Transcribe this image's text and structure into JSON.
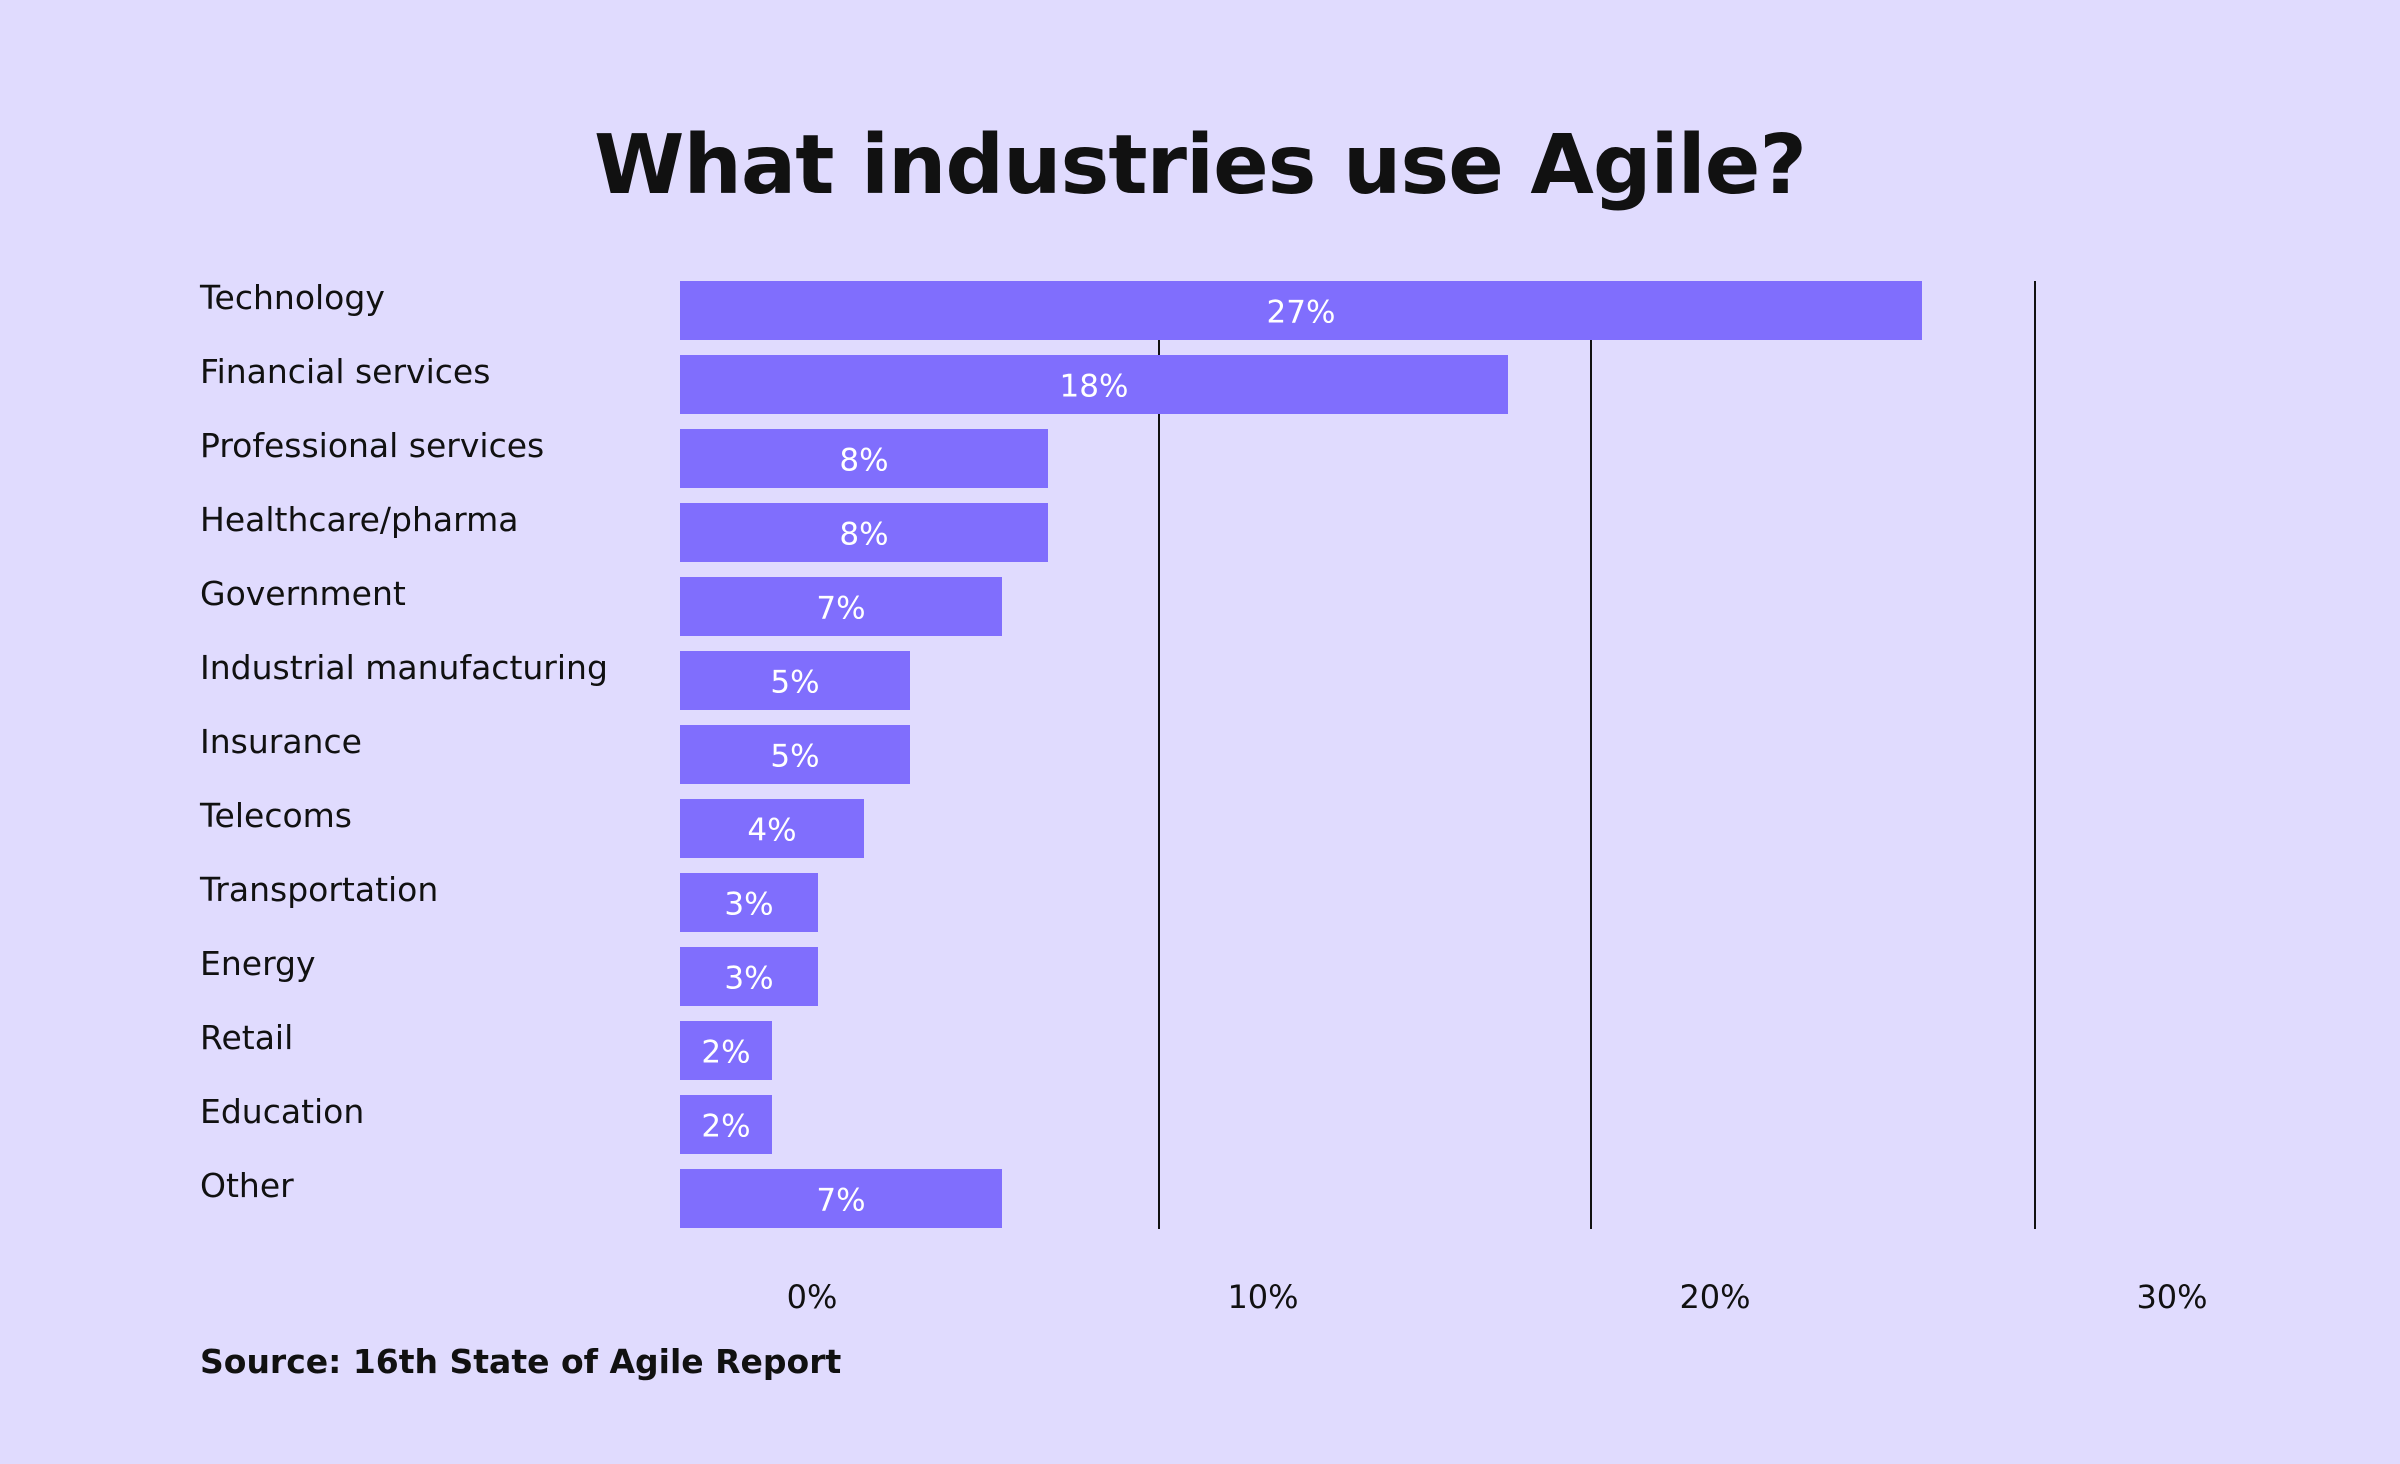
{
  "chart_data": {
    "type": "bar",
    "orientation": "horizontal",
    "title": "What industries use Agile?",
    "categories": [
      "Technology",
      "Financial services",
      "Professional services",
      "Healthcare/pharma",
      "Government",
      "Industrial manufacturing",
      "Insurance",
      "Telecoms",
      "Transportation",
      "Energy",
      "Retail",
      "Education",
      "Other"
    ],
    "values": [
      27,
      18,
      8,
      8,
      7,
      5,
      5,
      4,
      3,
      3,
      2,
      2,
      7
    ],
    "value_labels": [
      "27%",
      "18%",
      "8%",
      "8%",
      "7%",
      "5%",
      "5%",
      "4%",
      "3%",
      "3%",
      "2%",
      "2%",
      "7%"
    ],
    "x_ticks": [
      "0%",
      "10%",
      "20%",
      "30%"
    ],
    "xlim": [
      0,
      30
    ],
    "xlabel": "",
    "ylabel": "",
    "grid": true,
    "bar_color": "#806efd",
    "source": "Source: 16th State of Agile Report"
  }
}
